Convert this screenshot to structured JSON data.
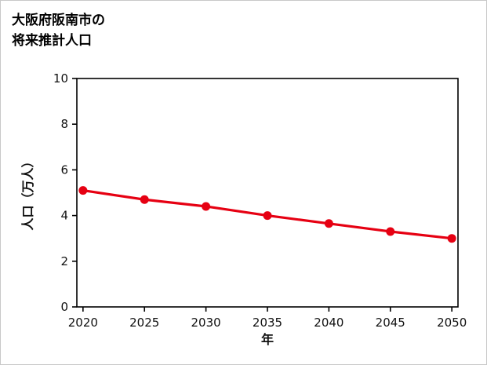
{
  "page": {
    "background": "#ffffff",
    "border_color": "#c9c9c9",
    "axis_color": "#000000",
    "accent_color": "#e60012"
  },
  "title": {
    "line1": "大阪府阪南市の",
    "line2": "将来推計人口"
  },
  "chart_data": {
    "type": "line",
    "title": "大阪府阪南市の将来推計人口",
    "x": [
      2020,
      2025,
      2030,
      2035,
      2040,
      2045,
      2050
    ],
    "series": [
      {
        "name": "将来推計人口",
        "values": [
          5.1,
          4.7,
          4.4,
          4.0,
          3.65,
          3.3,
          3.0
        ],
        "color": "#e60012",
        "marker": "circle"
      }
    ],
    "xlabel": "年",
    "ylabel": "人口（万人）",
    "xlim": [
      2019.5,
      2050.5
    ],
    "ylim": [
      0,
      10
    ],
    "xticks": [
      2020,
      2025,
      2030,
      2035,
      2040,
      2045,
      2050
    ],
    "yticks": [
      0,
      2,
      4,
      6,
      8,
      10
    ],
    "grid": false,
    "legend": "none"
  }
}
